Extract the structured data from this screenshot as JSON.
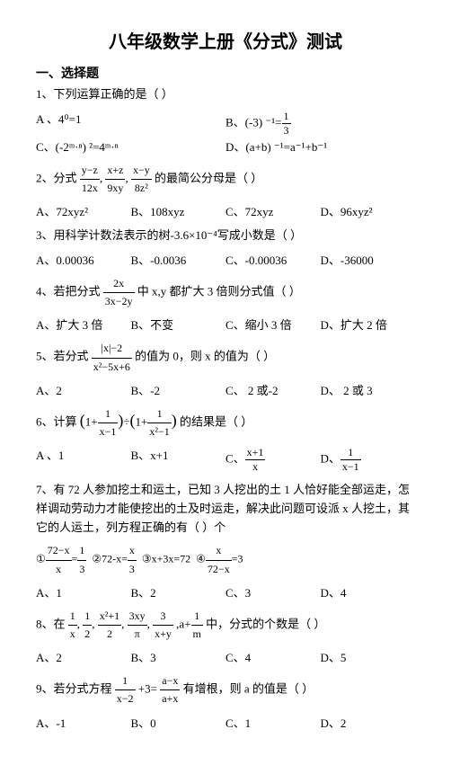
{
  "title": "八年级数学上册《分式》测试",
  "section1": "一、选择题",
  "q1": {
    "text": "1、下列运算正确的是（  ）",
    "a": "A 、4⁰=1",
    "b_prefix": "B、(-3) ⁻¹=",
    "b_n": "1",
    "b_d": "3",
    "c": "C、(-2ᵐ·ⁿ) ²=4ᵐ·ⁿ",
    "d": "D、(a+b) ⁻¹=a⁻¹+b⁻¹"
  },
  "q2": {
    "prefix": "2、分式 ",
    "f1n": "y−z",
    "f1d": "12x",
    "f2n": "x+z",
    "f2d": "9xy",
    "f3n": "x−y",
    "f3d": "8z²",
    "suffix": " 的最简公分母是（   ）",
    "a": "A、72xyz²",
    "b": "B、108xyz",
    "c": "C、72xyz",
    "d": "D、96xyz²"
  },
  "q3": {
    "text": "3、用科学计数法表示的树-3.6×10⁻⁴写成小数是（   ）",
    "a": "A、0.00036",
    "b": "B、-0.0036",
    "c": "C、-0.00036",
    "d": "D、-36000"
  },
  "q4": {
    "prefix": "4、若把分式 ",
    "fn": "2x",
    "fd": "3x−2y",
    "suffix": " 中 x,y 都扩大 3 倍则分式值（   ）",
    "a": "A、扩大 3 倍",
    "b": "B、不变",
    "c": "C、缩小 3 倍",
    "d": "D、扩大 2 倍"
  },
  "q5": {
    "prefix": "5、若分式 ",
    "fn": "|x|−2",
    "fd": "x²−5x+6",
    "suffix": " 的值为 0，则 x 的值为（    ）",
    "a": "A、2",
    "b": "B、-2",
    "c": "C、 2 或-2",
    "d": "D、 2 或 3"
  },
  "q6": {
    "prefix": "6、计算 ",
    "p1n": "1",
    "p1d": "x−1",
    "p2n": "1",
    "p2d": "x²−1",
    "suffix": " 的结果是（    ）",
    "a": "A 、1",
    "b": "B、x+1",
    "cn": "x+1",
    "cd": "x",
    "dn": "1",
    "dd": "x−1"
  },
  "q7": {
    "text": "7、有 72 人参加挖土和运土，已知 3 人挖出的土 1 人恰好能全部运走，怎样调动劳动力才能使挖出的土及时运走，解决此问题可设派 x 人挖土，其它的人运土，列方程正确的有（   ）个",
    "o1p": "①",
    "o1n": "72−x",
    "o1d": "x",
    "o1s": "=",
    "o1rn": "1",
    "o1rd": "3",
    "o2": "②72-x=",
    "o2n": "x",
    "o2d": "3",
    "o3": "③x+3x=72",
    "o4p": "④",
    "o4n": "x",
    "o4d": "72−x",
    "o4s": "=3",
    "a": "A、1",
    "b": "B、2",
    "c": "C、3",
    "d": "D、4"
  },
  "q8": {
    "prefix": "8、在 ",
    "f1n": "1",
    "f1d": "x",
    "f2n": "1",
    "f2d": "2",
    "f3n": "x²+1",
    "f3d": "2",
    "f4n": "3xy",
    "f4d": "π",
    "f5n": "3",
    "f5d": "x+y",
    "f6p": ",a+",
    "f6n": "1",
    "f6d": "m",
    "suffix": " 中，分式的个数是（    ）",
    "a": "A、2",
    "b": "B、3",
    "c": "C、4",
    "d": "D、5"
  },
  "q9": {
    "prefix": "9、若分式方程 ",
    "f1n": "1",
    "f1d": "x−2",
    "mid": "+3=",
    "f2n": "a−x",
    "f2d": "a+x",
    "suffix": " 有增根，则 a 的值是（      ）",
    "a": "A、-1",
    "b": "B、0",
    "c": "C、1",
    "d": "D、2"
  }
}
